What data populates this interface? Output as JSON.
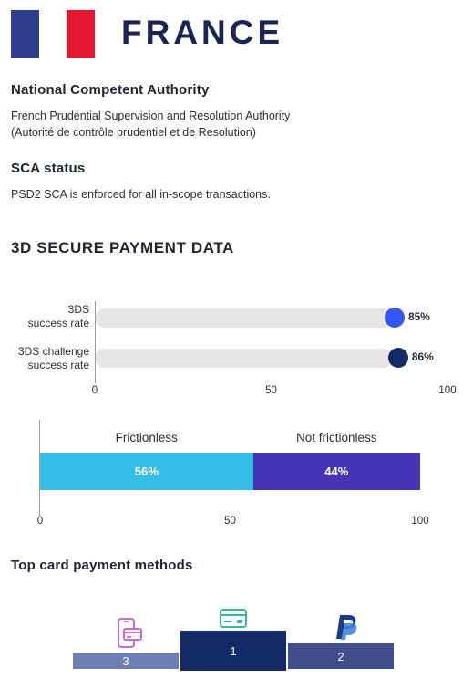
{
  "header": {
    "title": "FRANCE",
    "flag_colors": [
      "#2f3d8f",
      "#ffffff",
      "#e4172f"
    ]
  },
  "authority": {
    "heading": "National Competent Authority",
    "line1": "French Prudential Supervision and Resolution Authority",
    "line2": "(Autorité de contrôle prudentiel et de Resolution)"
  },
  "sca": {
    "heading": "SCA status",
    "text": "PSD2 SCA is enforced for all in-scope transactions."
  },
  "section_title": "3D SECURE PAYMENT DATA",
  "top_methods_title": "Top card payment methods",
  "chart_data": [
    {
      "type": "bar",
      "orientation": "horizontal",
      "categories": [
        {
          "line1": "3DS",
          "line2": "success rate"
        },
        {
          "line1": "3DS challenge",
          "line2": "success rate"
        }
      ],
      "values": [
        85,
        86
      ],
      "value_labels": [
        "85%",
        "86%"
      ],
      "colors": [
        "#3556f0",
        "#142a66"
      ],
      "xlim": [
        0,
        100
      ],
      "xticks": [
        "0",
        "50",
        "100"
      ],
      "track_color": "#e6e6e6"
    },
    {
      "type": "bar",
      "orientation": "horizontal",
      "stacked": true,
      "series": [
        {
          "name": "Frictionless",
          "value": 56,
          "value_label": "56%",
          "color": "#34bde6"
        },
        {
          "name": "Not frictionless",
          "value": 44,
          "value_label": "44%",
          "color": "#4634b7"
        }
      ],
      "xlim": [
        0,
        100
      ],
      "xticks": [
        "0",
        "50",
        "100"
      ]
    },
    {
      "type": "bar",
      "subtype": "podium",
      "categories": [
        "mobile-wallet-icon",
        "card-icon",
        "paypal-icon"
      ],
      "ranks": [
        "3",
        "1",
        "2"
      ],
      "colors": [
        "#6f7eb0",
        "#142a66",
        "#3f4f8e"
      ],
      "icon_colors": [
        "#c158c8",
        "#2fb8a3",
        "#1b3a8f"
      ]
    }
  ]
}
